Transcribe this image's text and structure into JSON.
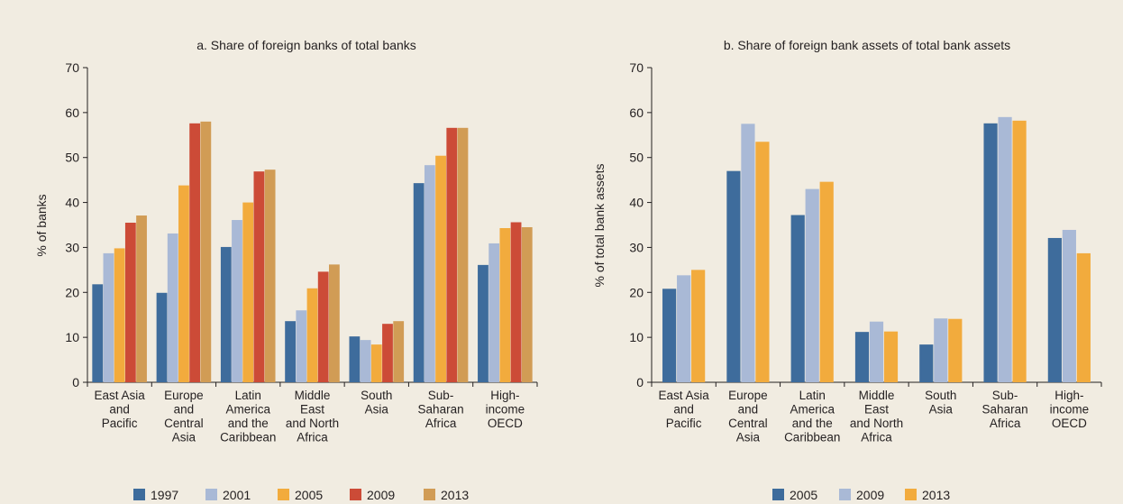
{
  "colors": {
    "background": "#f1ece1",
    "axis": "#231f20",
    "s1997": "#3e6c9c",
    "s2001": "#a9b9d6",
    "s2005": "#f2ab3d",
    "s2009": "#cc4b37",
    "s2013": "#d19c55"
  },
  "chart_data": [
    {
      "type": "bar",
      "title": "a. Share of foreign banks of total banks",
      "ylabel": "% of banks",
      "ylim": [
        0,
        70
      ],
      "yticks": [
        "0",
        "10",
        "20",
        "30",
        "40",
        "50",
        "60",
        "70"
      ],
      "categories": [
        [
          "East Asia",
          "and",
          "Pacific"
        ],
        [
          "Europe",
          "and",
          "Central",
          "Asia"
        ],
        [
          "Latin",
          "America",
          "and the",
          "Caribbean"
        ],
        [
          "Middle",
          "East",
          "and North",
          "Africa"
        ],
        [
          "South",
          "Asia"
        ],
        [
          "Sub-",
          "Saharan",
          "Africa"
        ],
        [
          "High-",
          "income",
          "OECD"
        ]
      ],
      "series": [
        {
          "name": "1997",
          "color": "#3e6c9c",
          "values": [
            21.8,
            19.9,
            30.1,
            13.6,
            10.2,
            44.3,
            26.1
          ]
        },
        {
          "name": "2001",
          "color": "#a9b9d6",
          "values": [
            28.7,
            33.1,
            36.1,
            16.0,
            9.4,
            48.3,
            30.9
          ]
        },
        {
          "name": "2005",
          "color": "#f2ab3d",
          "values": [
            29.8,
            43.8,
            40.0,
            20.9,
            8.4,
            50.4,
            34.3
          ]
        },
        {
          "name": "2009",
          "color": "#cc4b37",
          "values": [
            35.5,
            57.6,
            46.9,
            24.6,
            13.0,
            56.6,
            35.6
          ]
        },
        {
          "name": "2013",
          "color": "#d19c55",
          "values": [
            37.1,
            58.0,
            47.3,
            26.2,
            13.6,
            56.6,
            34.5
          ]
        }
      ],
      "legend": "bottom",
      "grid": false
    },
    {
      "type": "bar",
      "title": "b. Share of foreign bank assets of total bank assets",
      "ylabel": "% of total bank assets",
      "ylim": [
        0,
        70
      ],
      "yticks": [
        "0",
        "10",
        "20",
        "30",
        "40",
        "50",
        "60",
        "70"
      ],
      "categories": [
        [
          "East Asia",
          "and",
          "Pacific"
        ],
        [
          "Europe",
          "and",
          "Central",
          "Asia"
        ],
        [
          "Latin",
          "America",
          "and the",
          "Caribbean"
        ],
        [
          "Middle",
          "East",
          "and North",
          "Africa"
        ],
        [
          "South",
          "Asia"
        ],
        [
          "Sub-",
          "Saharan",
          "Africa"
        ],
        [
          "High-",
          "income",
          "OECD"
        ]
      ],
      "series": [
        {
          "name": "2005",
          "color": "#3e6c9c",
          "values": [
            20.8,
            47.0,
            37.2,
            11.2,
            8.4,
            57.6,
            32.1
          ]
        },
        {
          "name": "2009",
          "color": "#a9b9d6",
          "values": [
            23.8,
            57.5,
            43.0,
            13.5,
            14.2,
            59.0,
            33.9
          ]
        },
        {
          "name": "2013",
          "color": "#f2ab3d",
          "values": [
            25.0,
            53.5,
            44.6,
            11.3,
            14.1,
            58.2,
            28.7
          ]
        }
      ],
      "legend": "bottom",
      "grid": false
    }
  ]
}
